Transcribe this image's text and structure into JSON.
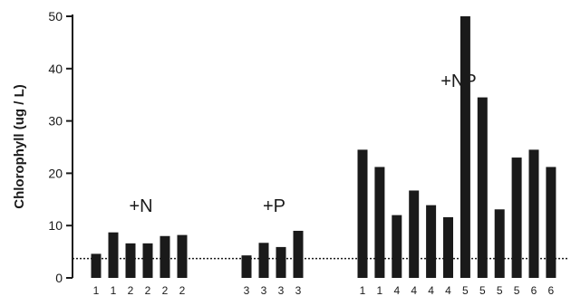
{
  "chart_data": {
    "type": "bar",
    "title": "",
    "xlabel": "",
    "ylabel": "Chlorophyll (ug / L)",
    "ylim": [
      0,
      50
    ],
    "yticks": [
      0,
      10,
      20,
      30,
      40,
      50
    ],
    "grid": false,
    "legend": "none",
    "bar_color": "#1a1a1a",
    "reference_line": {
      "value": 3.7,
      "style": "dotted"
    },
    "groups": [
      {
        "label": "+N",
        "bars": [
          {
            "category": "1",
            "value": 4.6
          },
          {
            "category": "1",
            "value": 8.7
          },
          {
            "category": "2",
            "value": 6.6
          },
          {
            "category": "2",
            "value": 6.6
          },
          {
            "category": "2",
            "value": 8.0
          },
          {
            "category": "2",
            "value": 8.2
          }
        ]
      },
      {
        "label": "+P",
        "bars": [
          {
            "category": "3",
            "value": 4.3
          },
          {
            "category": "3",
            "value": 6.7
          },
          {
            "category": "3",
            "value": 5.9
          },
          {
            "category": "3",
            "value": 9.0
          }
        ]
      },
      {
        "label": "+NP",
        "bars": [
          {
            "category": "1",
            "value": 24.5
          },
          {
            "category": "1",
            "value": 21.2
          },
          {
            "category": "4",
            "value": 12.0
          },
          {
            "category": "4",
            "value": 16.7
          },
          {
            "category": "4",
            "value": 13.9
          },
          {
            "category": "4",
            "value": 11.6
          },
          {
            "category": "5",
            "value": 50.0
          },
          {
            "category": "5",
            "value": 34.5
          },
          {
            "category": "5",
            "value": 13.1
          },
          {
            "category": "5",
            "value": 23.0
          },
          {
            "category": "6",
            "value": 24.5
          },
          {
            "category": "6",
            "value": 21.2
          }
        ]
      }
    ]
  }
}
